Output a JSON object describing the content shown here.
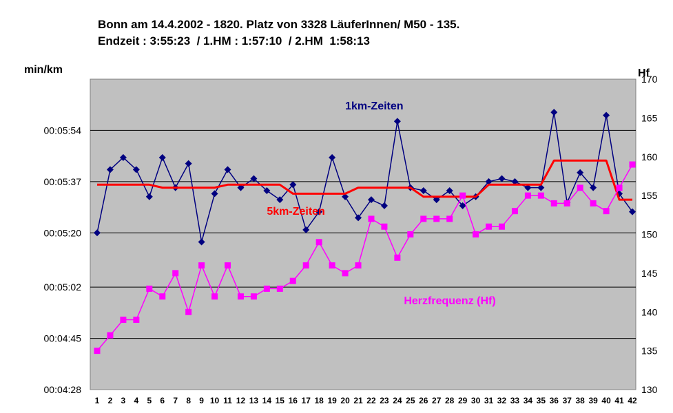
{
  "chart_data": {
    "type": "line",
    "title_line1": "Bonn am 14.4.2002 - 1820. Platz von 3328 LäuferInnen/ M50 - 135.",
    "title_line2": "Endzeit : 3:55:23  / 1.HM : 1:57:10  / 2.HM  1:58:13",
    "ylabel_left": "min/km",
    "ylabel_right": "Hf",
    "x": [
      1,
      2,
      3,
      4,
      5,
      6,
      7,
      8,
      9,
      10,
      11,
      12,
      13,
      14,
      15,
      16,
      17,
      18,
      19,
      20,
      21,
      22,
      23,
      24,
      25,
      26,
      27,
      28,
      29,
      30,
      31,
      32,
      33,
      34,
      35,
      36,
      37,
      38,
      39,
      40,
      41,
      42
    ],
    "y_left_ticks": [
      "00:04:28",
      "00:04:45",
      "00:05:02",
      "00:05:20",
      "00:05:37",
      "00:05:54"
    ],
    "y_left_ticks_seconds": [
      268,
      285,
      302,
      320,
      337,
      354
    ],
    "y_left_range_seconds": [
      268,
      371
    ],
    "y_right_ticks": [
      130,
      135,
      140,
      145,
      150,
      155,
      160,
      165,
      170
    ],
    "y_right_range": [
      130,
      170
    ],
    "grid": "horizontal",
    "plot_background": "#c0c0c0",
    "series": [
      {
        "name": "1km-Zeiten",
        "axis": "left",
        "color": "#000080",
        "marker": "diamond",
        "label_anchor": [
          20,
          361
        ],
        "values": [
          320,
          341,
          345,
          341,
          332,
          345,
          335,
          343,
          317,
          333,
          341,
          335,
          338,
          334,
          331,
          336,
          321,
          327,
          345,
          332,
          325,
          331,
          329,
          357,
          335,
          334,
          331,
          334,
          329,
          332,
          337,
          338,
          337,
          335,
          335,
          360,
          330,
          340,
          335,
          359,
          333,
          327
        ]
      },
      {
        "name": "5km-Zeiten",
        "axis": "left",
        "color": "#ff0000",
        "marker": "none",
        "label_anchor": [
          14,
          326
        ],
        "values": [
          336,
          336,
          336,
          336,
          336,
          335,
          335,
          335,
          335,
          335,
          336,
          336,
          336,
          336,
          336,
          333,
          333,
          333,
          333,
          333,
          335,
          335,
          335,
          335,
          335,
          332,
          332,
          332,
          332,
          332,
          336,
          336,
          336,
          336,
          336,
          344,
          344,
          344,
          344,
          344,
          331,
          331
        ]
      },
      {
        "name": "Herzfrequenz (Hf)",
        "axis": "right",
        "color": "#ff00ff",
        "marker": "square",
        "label_anchor": [
          24.5,
          141
        ],
        "values": [
          135,
          137,
          139,
          139,
          143,
          142,
          145,
          140,
          146,
          142,
          146,
          142,
          142,
          143,
          143,
          144,
          146,
          149,
          146,
          145,
          146,
          152,
          151,
          147,
          150,
          152,
          152,
          152,
          155,
          150,
          151,
          151,
          153,
          155,
          155,
          154,
          154,
          156,
          154,
          153,
          156,
          159
        ]
      }
    ]
  }
}
